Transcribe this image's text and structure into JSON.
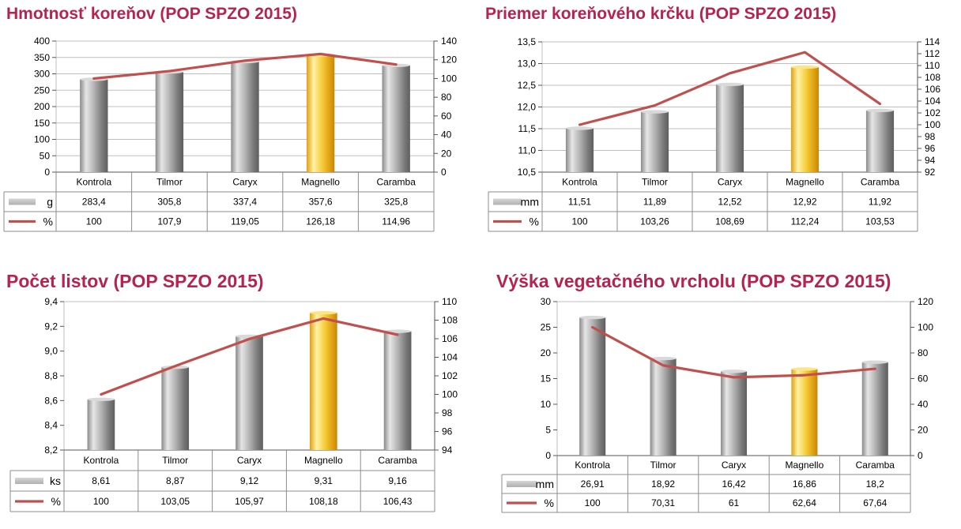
{
  "colors": {
    "title": "#b5234f",
    "bar_gray": "#a8a8a8",
    "bar_highlight": "#f2c12e",
    "line": "#c0504d",
    "grid": "#bfbfbf",
    "axis_text": "#000000"
  },
  "chart_data": [
    {
      "type": "bar",
      "title": "Hmotnosť koreňov (POP SPZO 2015)",
      "categories": [
        "Kontrola",
        "Tilmor",
        "Caryx",
        "Magnello",
        "Caramba"
      ],
      "highlight_category": "Magnello",
      "series": [
        {
          "name": "g",
          "kind": "bar",
          "axis": "left",
          "values": [
            283.4,
            305.8,
            337.4,
            357.6,
            325.8
          ],
          "labels": [
            "283,4",
            "305,8",
            "337,4",
            "357,6",
            "325,8"
          ]
        },
        {
          "name": "%",
          "kind": "line",
          "axis": "right",
          "values": [
            100,
            107.9,
            119.05,
            126.18,
            114.96
          ],
          "labels": [
            "100",
            "107,9",
            "119,05",
            "126,18",
            "114,96"
          ]
        }
      ],
      "left_axis": {
        "ylim": [
          0,
          400
        ],
        "ticks": [
          0,
          50,
          100,
          150,
          200,
          250,
          300,
          350,
          400
        ],
        "tick_labels": [
          "0",
          "50",
          "100",
          "150",
          "200",
          "250",
          "300",
          "350",
          "400"
        ]
      },
      "right_axis": {
        "ylim": [
          0,
          140
        ],
        "ticks": [
          0,
          20,
          40,
          60,
          80,
          100,
          120,
          140
        ],
        "tick_labels": [
          "0",
          "20",
          "40",
          "60",
          "80",
          "100",
          "120",
          "140"
        ]
      },
      "grid": true,
      "data_table": true
    },
    {
      "type": "bar",
      "title": "Priemer koreňového krčku (POP SPZO 2015)",
      "categories": [
        "Kontrola",
        "Tilmor",
        "Caryx",
        "Magnello",
        "Caramba"
      ],
      "highlight_category": "Magnello",
      "series": [
        {
          "name": "mm",
          "kind": "bar",
          "axis": "left",
          "values": [
            11.51,
            11.89,
            12.52,
            12.92,
            11.92
          ],
          "labels": [
            "11,51",
            "11,89",
            "12,52",
            "12,92",
            "11,92"
          ]
        },
        {
          "name": "%",
          "kind": "line",
          "axis": "right",
          "values": [
            100,
            103.26,
            108.69,
            112.24,
            103.53
          ],
          "labels": [
            "100",
            "103,26",
            "108,69",
            "112,24",
            "103,53"
          ]
        }
      ],
      "left_axis": {
        "ylim": [
          10.5,
          13.5
        ],
        "ticks": [
          10.5,
          11.0,
          11.5,
          12.0,
          12.5,
          13.0,
          13.5
        ],
        "tick_labels": [
          "10,5",
          "11,0",
          "11,5",
          "12,0",
          "12,5",
          "13,0",
          "13,5"
        ]
      },
      "right_axis": {
        "ylim": [
          92,
          114
        ],
        "ticks": [
          92,
          94,
          96,
          98,
          100,
          102,
          104,
          106,
          108,
          110,
          112,
          114
        ],
        "tick_labels": [
          "92",
          "94",
          "96",
          "98",
          "100",
          "102",
          "104",
          "106",
          "108",
          "110",
          "112",
          "114"
        ]
      },
      "grid": true,
      "data_table": true
    },
    {
      "type": "bar",
      "title": "Počet listov (POP SPZO 2015)",
      "categories": [
        "Kontrola",
        "Tilmor",
        "Caryx",
        "Magnello",
        "Caramba"
      ],
      "highlight_category": "Magnello",
      "series": [
        {
          "name": "ks",
          "kind": "bar",
          "axis": "left",
          "values": [
            8.61,
            8.87,
            9.12,
            9.31,
            9.16
          ],
          "labels": [
            "8,61",
            "8,87",
            "9,12",
            "9,31",
            "9,16"
          ]
        },
        {
          "name": "%",
          "kind": "line",
          "axis": "right",
          "values": [
            100,
            103.05,
            105.97,
            108.18,
            106.43
          ],
          "labels": [
            "100",
            "103,05",
            "105,97",
            "108,18",
            "106,43"
          ]
        }
      ],
      "left_axis": {
        "ylim": [
          8.2,
          9.4
        ],
        "ticks": [
          8.2,
          8.4,
          8.6,
          8.8,
          9.0,
          9.2,
          9.4
        ],
        "tick_labels": [
          "8,2",
          "8,4",
          "8,6",
          "8,8",
          "9,0",
          "9,2",
          "9,4"
        ]
      },
      "right_axis": {
        "ylim": [
          94,
          110
        ],
        "ticks": [
          94,
          96,
          98,
          100,
          102,
          104,
          106,
          108,
          110
        ],
        "tick_labels": [
          "94",
          "96",
          "98",
          "100",
          "102",
          "104",
          "106",
          "108",
          "110"
        ]
      },
      "grid": false,
      "data_table": true
    },
    {
      "type": "bar",
      "title": "Výška vegetačného vrcholu (POP SPZO 2015)",
      "categories": [
        "Kontrola",
        "Tilmor",
        "Caryx",
        "Magnello",
        "Caramba"
      ],
      "highlight_category": "Magnello",
      "series": [
        {
          "name": "mm",
          "kind": "bar",
          "axis": "left",
          "values": [
            26.91,
            18.92,
            16.42,
            16.86,
            18.2
          ],
          "labels": [
            "26,91",
            "18,92",
            "16,42",
            "16,86",
            "18,2"
          ]
        },
        {
          "name": "%",
          "kind": "line",
          "axis": "right",
          "values": [
            100,
            70.31,
            61,
            62.64,
            67.64
          ],
          "labels": [
            "100",
            "70,31",
            "61",
            "62,64",
            "67,64"
          ]
        }
      ],
      "left_axis": {
        "ylim": [
          0,
          30
        ],
        "ticks": [
          0,
          5,
          10,
          15,
          20,
          25,
          30
        ],
        "tick_labels": [
          "0",
          "5",
          "10",
          "15",
          "20",
          "25",
          "30"
        ]
      },
      "right_axis": {
        "ylim": [
          0,
          120
        ],
        "ticks": [
          0,
          20,
          40,
          60,
          80,
          100,
          120
        ],
        "tick_labels": [
          "0",
          "20",
          "40",
          "60",
          "80",
          "100",
          "120"
        ]
      },
      "grid": false,
      "data_table": true
    }
  ]
}
